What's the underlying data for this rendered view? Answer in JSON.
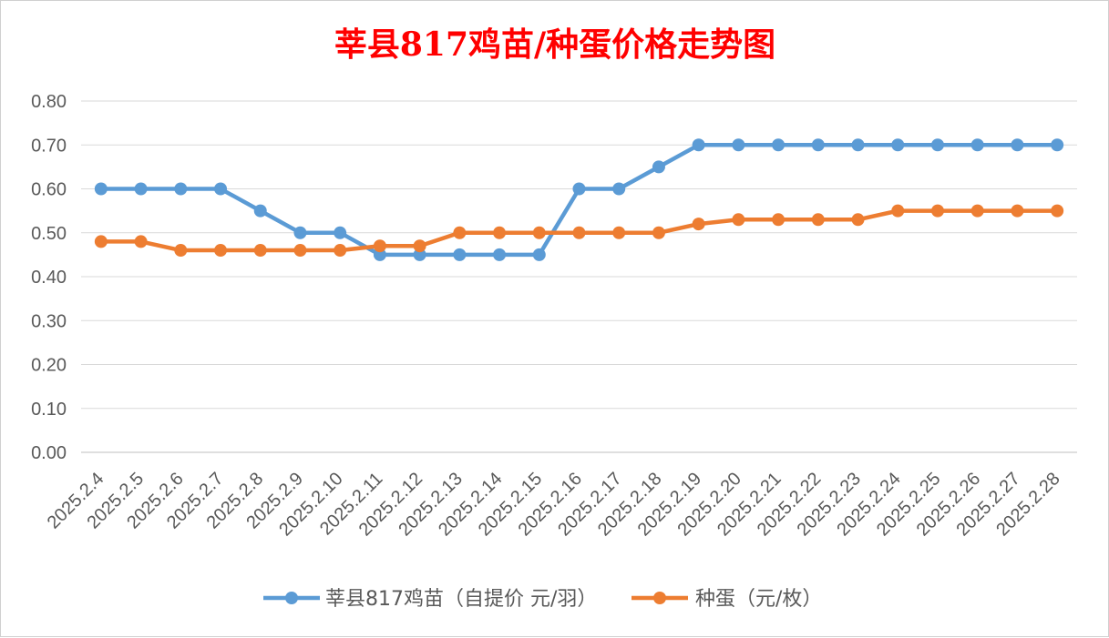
{
  "chart_data": {
    "type": "line",
    "title": "莘县817鸡苗/种蛋价格走势图",
    "xlabel": "",
    "ylabel": "",
    "ylim": [
      0,
      0.8
    ],
    "y_ticks": [
      "0.00",
      "0.10",
      "0.20",
      "0.30",
      "0.40",
      "0.50",
      "0.60",
      "0.70",
      "0.80"
    ],
    "categories": [
      "2025.2.4",
      "2025.2.5",
      "2025.2.6",
      "2025.2.7",
      "2025.2.8",
      "2025.2.9",
      "2025.2.10",
      "2025.2.11",
      "2025.2.12",
      "2025.2.13",
      "2025.2.14",
      "2025.2.15",
      "2025.2.16",
      "2025.2.17",
      "2025.2.18",
      "2025.2.19",
      "2025.2.20",
      "2025.2.21",
      "2025.2.22",
      "2025.2.23",
      "2025.2.24",
      "2025.2.25",
      "2025.2.26",
      "2025.2.27",
      "2025.2.28"
    ],
    "series": [
      {
        "name": "莘县817鸡苗（自提价 元/羽）",
        "color": "#5B9BD5",
        "values": [
          0.6,
          0.6,
          0.6,
          0.6,
          0.55,
          0.5,
          0.5,
          0.45,
          0.45,
          0.45,
          0.45,
          0.45,
          0.6,
          0.6,
          0.65,
          0.7,
          0.7,
          0.7,
          0.7,
          0.7,
          0.7,
          0.7,
          0.7,
          0.7,
          0.7
        ]
      },
      {
        "name": "种蛋（元/枚）",
        "color": "#ED7D31",
        "values": [
          0.48,
          0.48,
          0.46,
          0.46,
          0.46,
          0.46,
          0.46,
          0.47,
          0.47,
          0.5,
          0.5,
          0.5,
          0.5,
          0.5,
          0.5,
          0.52,
          0.53,
          0.53,
          0.53,
          0.53,
          0.55,
          0.55,
          0.55,
          0.55,
          0.55
        ]
      }
    ],
    "grid": true,
    "legend_position": "bottom",
    "title_color": "#FF0000"
  }
}
